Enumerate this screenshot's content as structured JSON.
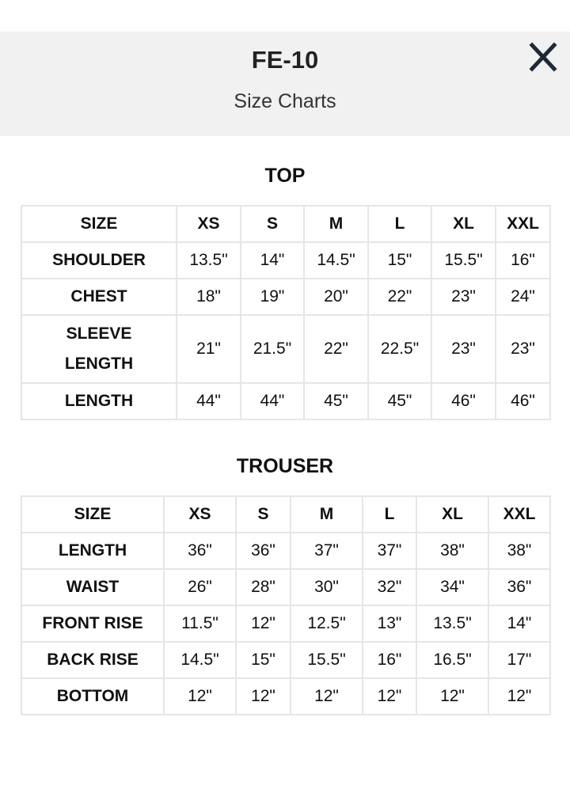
{
  "header": {
    "title": "FE-10",
    "subtitle": "Size Charts",
    "close_icon": "close-icon"
  },
  "top": {
    "heading": "TOP",
    "columns": [
      "SIZE",
      "XS",
      "S",
      "M",
      "L",
      "XL",
      "XXL"
    ],
    "rows": [
      {
        "label": "SHOULDER",
        "values": [
          "13.5\"",
          "14\"",
          "14.5\"",
          "15\"",
          "15.5\"",
          "16\""
        ]
      },
      {
        "label": "CHEST",
        "values": [
          "18\"",
          "19\"",
          "20\"",
          "22\"",
          "23\"",
          "24\""
        ]
      },
      {
        "label": "SLEEVE LENGTH",
        "values": [
          "21\"",
          "21.5\"",
          "22\"",
          "22.5\"",
          "23\"",
          "23\""
        ]
      },
      {
        "label": "LENGTH",
        "values": [
          "44\"",
          "44\"",
          "45\"",
          "45\"",
          "46\"",
          "46\""
        ]
      }
    ]
  },
  "trouser": {
    "heading": "TROUSER",
    "columns": [
      "SIZE",
      "XS",
      "S",
      "M",
      "L",
      "XL",
      "XXL"
    ],
    "rows": [
      {
        "label": "LENGTH",
        "values": [
          "36\"",
          "36\"",
          "37\"",
          "37\"",
          "38\"",
          "38\""
        ]
      },
      {
        "label": "WAIST",
        "values": [
          "26\"",
          "28\"",
          "30\"",
          "32\"",
          "34\"",
          "36\""
        ]
      },
      {
        "label": "FRONT RISE",
        "values": [
          "11.5\"",
          "12\"",
          "12.5\"",
          "13\"",
          "13.5\"",
          "14\""
        ]
      },
      {
        "label": "BACK RISE",
        "values": [
          "14.5\"",
          "15\"",
          "15.5\"",
          "16\"",
          "16.5\"",
          "17\""
        ]
      },
      {
        "label": "BOTTOM",
        "values": [
          "12\"",
          "12\"",
          "12\"",
          "12\"",
          "12\"",
          "12\""
        ]
      }
    ]
  }
}
